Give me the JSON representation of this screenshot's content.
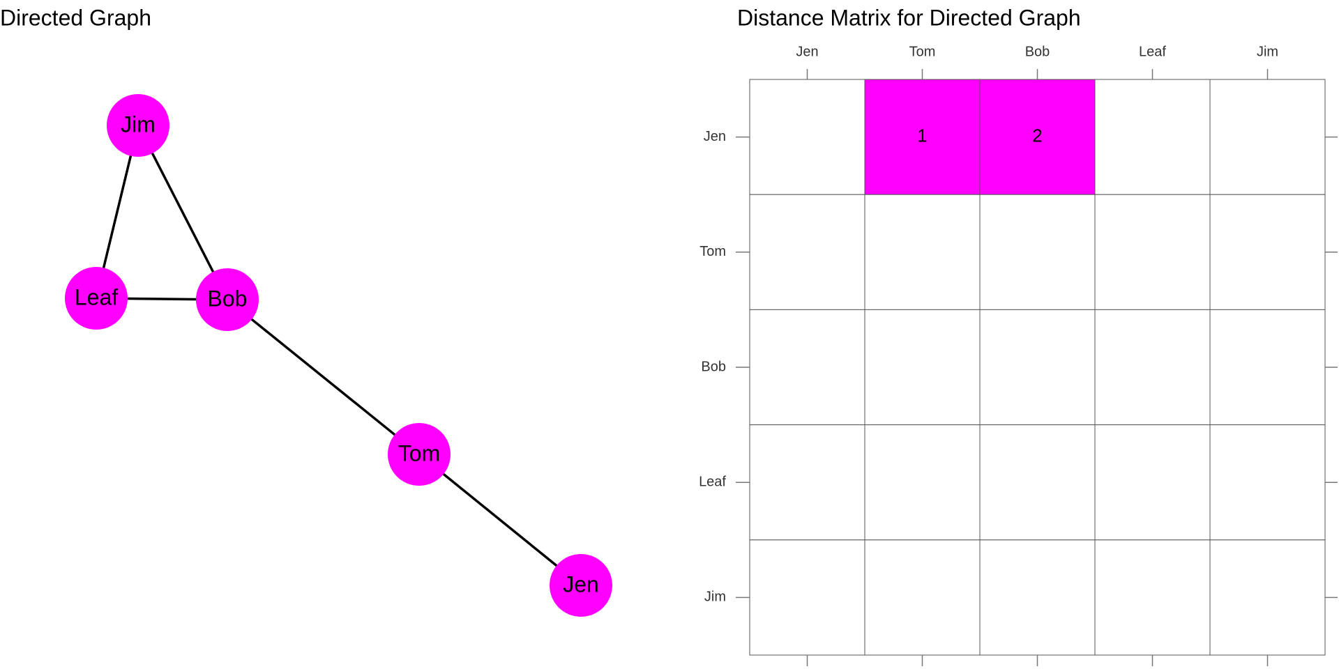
{
  "graph": {
    "title": "Directed Graph",
    "nodes": [
      {
        "label": "Jen"
      },
      {
        "label": "Tom"
      },
      {
        "label": "Bob"
      },
      {
        "label": "Leaf"
      },
      {
        "label": "Jim"
      }
    ]
  },
  "matrix": {
    "title": "Distance Matrix for Directed Graph",
    "columns": [
      "Jen",
      "Tom",
      "Bob",
      "Leaf",
      "Jim"
    ],
    "rows": [
      "Jen",
      "Tom",
      "Bob",
      "Leaf",
      "Jim"
    ],
    "cells": [
      [
        null,
        1,
        2,
        null,
        null
      ],
      [
        null,
        null,
        null,
        null,
        null
      ],
      [
        null,
        null,
        null,
        null,
        null
      ],
      [
        null,
        null,
        null,
        null,
        null
      ],
      [
        null,
        null,
        null,
        null,
        null
      ]
    ]
  }
}
